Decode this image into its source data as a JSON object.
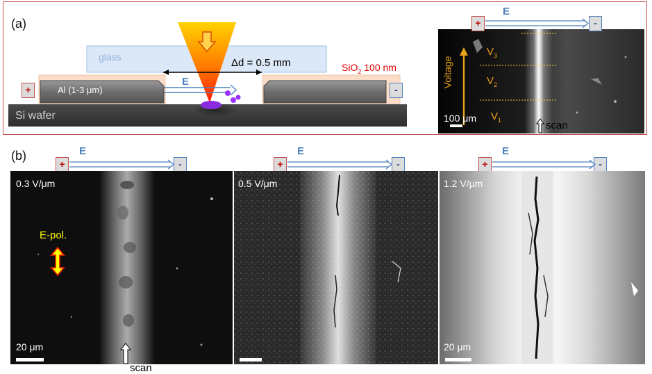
{
  "panel_a": {
    "label": "(a)",
    "glass": "glass",
    "distance": "Δd = 0.5 mm",
    "oxide": "SiO",
    "oxide_sub": "2",
    "oxide_thickness": " 100 nm",
    "electrode": "Al (1-3 ",
    "electrode_unit": "μm)",
    "field": "E",
    "plus": "+",
    "minus": "-",
    "wafer": "Si wafer",
    "sem": {
      "field": "E",
      "plus": "+",
      "minus": "-",
      "voltage": "Voltage",
      "v_sym": "V",
      "v3": "3",
      "v2": "2",
      "v1": "1",
      "scale": "100 μm",
      "scan": "scan"
    }
  },
  "panel_b": {
    "label": "(b)",
    "images": [
      {
        "field_strength": "0.3 V/μm",
        "scale": "20 μm",
        "plus": "+",
        "minus": "-",
        "field": "E"
      },
      {
        "field_strength": "0.5 V/μm",
        "scale": "",
        "plus": "+",
        "minus": "-",
        "field": "E"
      },
      {
        "field_strength": "1.2 V/μm",
        "scale": "20 μm",
        "plus": "+",
        "minus": "-",
        "field": "E"
      }
    ],
    "polarization": "E-pol.",
    "scan": "scan"
  },
  "colors": {
    "frame": "#c0504d",
    "field_blue": "#4f81bd",
    "plus_red": "#c00000",
    "voltage_orange": "#e8a317",
    "pol_yellow": "#ffff00"
  }
}
